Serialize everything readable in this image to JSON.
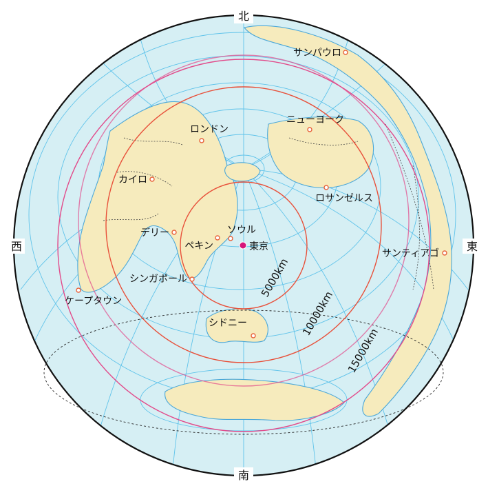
{
  "map": {
    "directions": {
      "north": "北",
      "south": "南",
      "east": "東",
      "west": "西"
    },
    "center_city": "東京",
    "distance_rings": [
      "5000km",
      "10000km",
      "15000km"
    ],
    "cities": {
      "sao_paulo": "サンパウロ",
      "new_york": "ニューヨーク",
      "london": "ロンドン",
      "cairo": "カイロ",
      "los_angeles": "ロサンゼルス",
      "delhi": "デリー",
      "seoul": "ソウル",
      "beijing": "ペキン",
      "santiago": "サンティアゴ",
      "singapore": "シンガポール",
      "cape_town": "ケープタウン",
      "sydney": "シドニー"
    },
    "colors": {
      "ocean": "#d6eff4",
      "land": "#f6ebbd",
      "grid": "#5fc3ea",
      "ring_5000": "#e8503a",
      "ring_10000": "#e24a8a",
      "ring_15000": "#d63a7a",
      "tokyo_marker": "#d6157a"
    }
  }
}
